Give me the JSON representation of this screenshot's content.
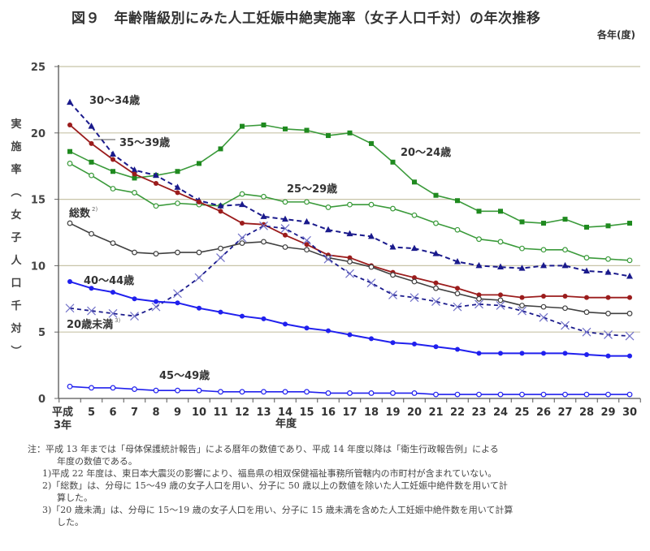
{
  "title": "図９　年齢階級別にみた人工妊娠中絶実施率（女子人口千対）の年次推移",
  "unit_note": "各年(度)",
  "y_axis_label_chars": [
    "実",
    "施",
    "率",
    "︵",
    "女",
    "子",
    "人",
    "口",
    "千",
    "対",
    "︶"
  ],
  "x_axis_title": "年度",
  "colors": {
    "green": "#3a9a3a",
    "green_marker": "#1f8a1f",
    "navy": "#1a1a8c",
    "red": "#9b1c1c",
    "gray": "#404040",
    "blue": "#2020ee",
    "grid": "#c8c4a8"
  },
  "chart_data": {
    "type": "line",
    "title": "年齢階級別にみた人工妊娠中絶実施率（女子人口千対）の年次推移",
    "xlabel": "年度",
    "ylabel": "実施率（女子人口千対）",
    "ylim": [
      0,
      25
    ],
    "yticks": [
      "0",
      "5",
      "10",
      "15",
      "20",
      "25"
    ],
    "grid": true,
    "categories": [
      "平成",
      "5",
      "6",
      "7",
      "8",
      "9",
      "10",
      "11",
      "12",
      "13",
      "14",
      "15",
      "16",
      "17",
      "18",
      "19",
      "20",
      "21",
      "22",
      "23",
      "24",
      "25",
      "26",
      "27",
      "28",
      "29",
      "30"
    ],
    "first_category_line2": "3年",
    "series": [
      {
        "name": "20〜24歳",
        "label": "20〜24歳",
        "style": "green-solid-square",
        "values": [
          18.6,
          17.8,
          17.1,
          16.6,
          16.8,
          17.1,
          17.7,
          18.8,
          20.5,
          20.6,
          20.3,
          20.2,
          19.8,
          20.0,
          19.2,
          17.8,
          16.3,
          15.3,
          14.9,
          14.1,
          14.1,
          13.3,
          13.2,
          13.5,
          12.9,
          13.0,
          13.2
        ]
      },
      {
        "name": "25〜29歳",
        "label": "25〜29歳",
        "style": "green-solid-circle-open",
        "values": [
          17.7,
          16.8,
          15.8,
          15.5,
          14.5,
          14.7,
          14.6,
          14.5,
          15.4,
          15.2,
          14.8,
          14.8,
          14.4,
          14.6,
          14.6,
          14.3,
          13.8,
          13.2,
          12.7,
          12.0,
          11.8,
          11.3,
          11.2,
          11.2,
          10.6,
          10.5,
          10.4
        ]
      },
      {
        "name": "30〜34歳",
        "label": "30〜34歳",
        "style": "navy-dashed-triangle",
        "values": [
          22.3,
          20.5,
          18.4,
          17.2,
          16.8,
          15.9,
          14.9,
          14.5,
          14.6,
          13.7,
          13.5,
          13.3,
          12.7,
          12.4,
          12.2,
          11.4,
          11.3,
          10.9,
          10.3,
          10.0,
          9.9,
          9.8,
          10.0,
          10.0,
          9.6,
          9.5,
          9.2
        ]
      },
      {
        "name": "35〜39歳",
        "label": "35〜39歳",
        "style": "red-solid-dot",
        "values": [
          20.6,
          19.2,
          18.0,
          16.9,
          16.2,
          15.5,
          14.8,
          14.1,
          13.2,
          13.1,
          12.3,
          11.6,
          10.8,
          10.6,
          10.0,
          9.5,
          9.1,
          8.7,
          8.3,
          7.8,
          7.8,
          7.6,
          7.7,
          7.7,
          7.6,
          7.6,
          7.6
        ]
      },
      {
        "name": "総数",
        "label": "総数",
        "label_sup": "2)",
        "style": "gray-solid-circle-open",
        "values": [
          13.2,
          12.4,
          11.7,
          11.0,
          10.9,
          11.0,
          11.0,
          11.3,
          11.7,
          11.8,
          11.4,
          11.2,
          10.6,
          10.3,
          9.9,
          9.3,
          8.8,
          8.3,
          7.9,
          7.5,
          7.4,
          7.0,
          6.9,
          6.8,
          6.5,
          6.4,
          6.4
        ]
      },
      {
        "name": "20歳未満",
        "label": "20歳未満",
        "label_sup": "3)",
        "style": "navy-dashed-x",
        "values": [
          6.8,
          6.6,
          6.4,
          6.2,
          6.9,
          7.9,
          9.1,
          10.6,
          12.1,
          13.0,
          12.8,
          11.9,
          10.5,
          9.4,
          8.7,
          7.8,
          7.6,
          7.3,
          6.9,
          7.1,
          7.0,
          6.6,
          6.1,
          5.5,
          5.0,
          4.8,
          4.7
        ]
      },
      {
        "name": "40〜44歳",
        "label": "40〜44歳",
        "style": "blue-solid-dot",
        "values": [
          8.8,
          8.3,
          8.0,
          7.5,
          7.3,
          7.2,
          6.8,
          6.5,
          6.2,
          6.0,
          5.6,
          5.3,
          5.1,
          4.8,
          4.5,
          4.2,
          4.1,
          3.9,
          3.7,
          3.4,
          3.4,
          3.4,
          3.4,
          3.4,
          3.3,
          3.2,
          3.2
        ]
      },
      {
        "name": "45〜49歳",
        "label": "45〜49歳",
        "style": "blue-solid-circle-open",
        "values": [
          0.9,
          0.8,
          0.8,
          0.7,
          0.6,
          0.6,
          0.6,
          0.5,
          0.5,
          0.5,
          0.5,
          0.5,
          0.4,
          0.4,
          0.4,
          0.4,
          0.4,
          0.3,
          0.3,
          0.3,
          0.3,
          0.3,
          0.3,
          0.3,
          0.3,
          0.3,
          0.3
        ]
      }
    ]
  },
  "notes": {
    "main_line1": "注：平成 13 年までは「母体保護統計報告」による暦年の数値であり、平成 14 年度以降は「衛生行政報告例」による",
    "main_line2": "年度の数値である。",
    "note1": "1)平成 22 年度は、東日本大震災の影響により、福島県の相双保健福祉事務所管轄内の市町村が含まれていない。",
    "note2_line1": "2)「総数」は、分母に 15〜49 歳の女子人口を用い、分子に 50 歳以上の数値を除いた人工妊娠中絶件数を用いて計",
    "note2_line2": "算した。",
    "note3_line1": "3)「20 歳未満」は、分母に 15〜19 歳の女子人口を用い、分子に 15 歳未満を含めた人工妊娠中絶件数を用いて計算",
    "note3_line2": "した。"
  }
}
